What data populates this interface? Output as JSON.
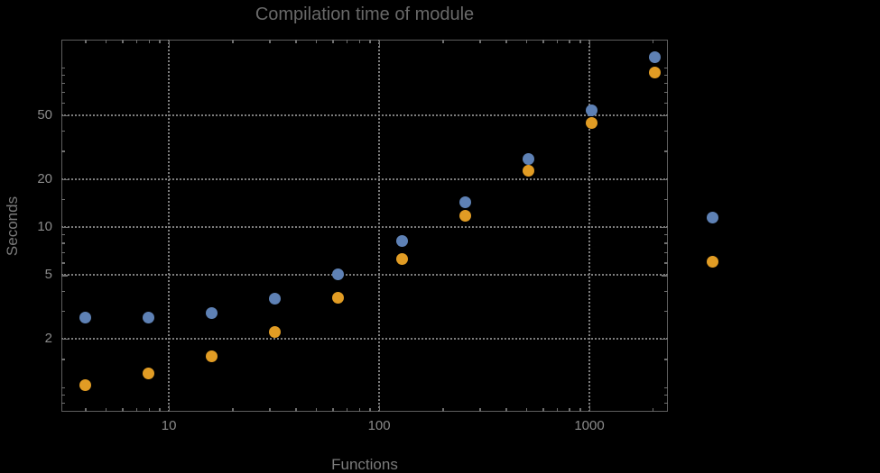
{
  "title": "Compilation time of module",
  "colors": {
    "background": "#000000",
    "frame": "#5e5e5e",
    "gridline": "#7d7d7d",
    "tick": "#6f6f6f",
    "tick_label": "#8a8a8a",
    "axis_label": "#7b7b7b",
    "title": "#696969",
    "series_blue": "#5e81b5",
    "series_orange": "#e19c24"
  },
  "chart_data": {
    "type": "scatter",
    "title": "Compilation time of module",
    "xlabel": "Functions",
    "ylabel": "Seconds",
    "x_scale": "log",
    "y_scale": "log",
    "xlim": [
      3.08,
      2362
    ],
    "ylim": [
      0.7,
      148.6
    ],
    "grid": "dotted at labeled major ticks only",
    "x": [
      4,
      8,
      16,
      32,
      64,
      128,
      256,
      512,
      1024,
      2048
    ],
    "series": [
      {
        "name": "blue",
        "color": "#5e81b5",
        "values": [
          2.7,
          2.7,
          2.9,
          3.55,
          5.05,
          8.2,
          14.2,
          26.5,
          54,
          116
        ]
      },
      {
        "name": "orange",
        "color": "#e19c24",
        "values": [
          1.03,
          1.22,
          1.55,
          2.2,
          3.6,
          6.3,
          11.8,
          22.5,
          45,
          92
        ]
      }
    ],
    "x_major_ticks": [
      10,
      100,
      1000
    ],
    "x_major_labels": [
      "10",
      "100",
      "1000"
    ],
    "x_minor_ticks": [
      4,
      5,
      6,
      7,
      8,
      9,
      20,
      30,
      40,
      50,
      60,
      70,
      80,
      90,
      200,
      300,
      400,
      500,
      600,
      700,
      800,
      900,
      2000
    ],
    "y_major_ticks": [
      2,
      5,
      10,
      20,
      50
    ],
    "y_major_labels": [
      "2",
      "5",
      "10",
      "20",
      "50"
    ],
    "y_minor_ticks": [
      0.8,
      0.9,
      1,
      1.5,
      3,
      4,
      6,
      7,
      8,
      9,
      15,
      30,
      40,
      60,
      70,
      80,
      90,
      100
    ],
    "legend_position": "right-outside",
    "legend": [
      {
        "color": "#5e81b5",
        "labels_visible": false
      },
      {
        "color": "#e19c24",
        "labels_visible": false
      }
    ]
  }
}
